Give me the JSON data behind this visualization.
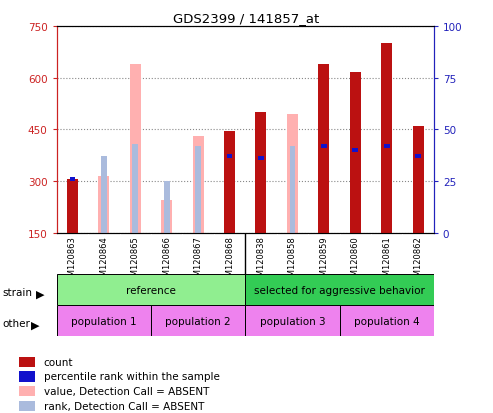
{
  "title": "GDS2399 / 141857_at",
  "samples": [
    "GSM120863",
    "GSM120864",
    "GSM120865",
    "GSM120866",
    "GSM120867",
    "GSM120868",
    "GSM120838",
    "GSM120858",
    "GSM120859",
    "GSM120860",
    "GSM120861",
    "GSM120862"
  ],
  "count_values": [
    305,
    null,
    null,
    null,
    null,
    445,
    500,
    null,
    640,
    615,
    700,
    460
  ],
  "absent_value_heights": [
    null,
    315,
    640,
    245,
    430,
    null,
    null,
    495,
    null,
    null,
    null,
    null
  ],
  "percentile_rank_vals": [
    26,
    null,
    null,
    null,
    null,
    37,
    36,
    null,
    42,
    40,
    42,
    37
  ],
  "absent_rank_vals": [
    null,
    37,
    43,
    25,
    42,
    null,
    null,
    42,
    null,
    null,
    null,
    null
  ],
  "ylim_left": [
    150,
    750
  ],
  "ylim_right": [
    0,
    100
  ],
  "yticks_left": [
    150,
    300,
    450,
    600,
    750
  ],
  "yticks_right": [
    0,
    25,
    50,
    75,
    100
  ],
  "strain_groups": [
    {
      "label": "reference",
      "start": 0,
      "end": 6,
      "color": "#90ee90"
    },
    {
      "label": "selected for aggressive behavior",
      "start": 6,
      "end": 12,
      "color": "#33cc55"
    }
  ],
  "population_groups": [
    {
      "label": "population 1",
      "start": 0,
      "end": 3,
      "color": "#ee82ee"
    },
    {
      "label": "population 2",
      "start": 3,
      "end": 6,
      "color": "#ee82ee"
    },
    {
      "label": "population 3",
      "start": 6,
      "end": 9,
      "color": "#ee82ee"
    },
    {
      "label": "population 4",
      "start": 9,
      "end": 12,
      "color": "#ee82ee"
    }
  ],
  "colors": {
    "count": "#bb1111",
    "percentile_rank": "#1111cc",
    "absent_value": "#ffb0b0",
    "absent_rank": "#aabbdd",
    "grid": "#888888",
    "left_axis_color": "#cc2222",
    "right_axis_color": "#2222bb",
    "xtick_bg": "#cccccc"
  },
  "legend_items": [
    {
      "label": "count",
      "color": "#bb1111"
    },
    {
      "label": "percentile rank within the sample",
      "color": "#1111cc"
    },
    {
      "label": "value, Detection Call = ABSENT",
      "color": "#ffb0b0"
    },
    {
      "label": "rank, Detection Call = ABSENT",
      "color": "#aabbdd"
    }
  ]
}
